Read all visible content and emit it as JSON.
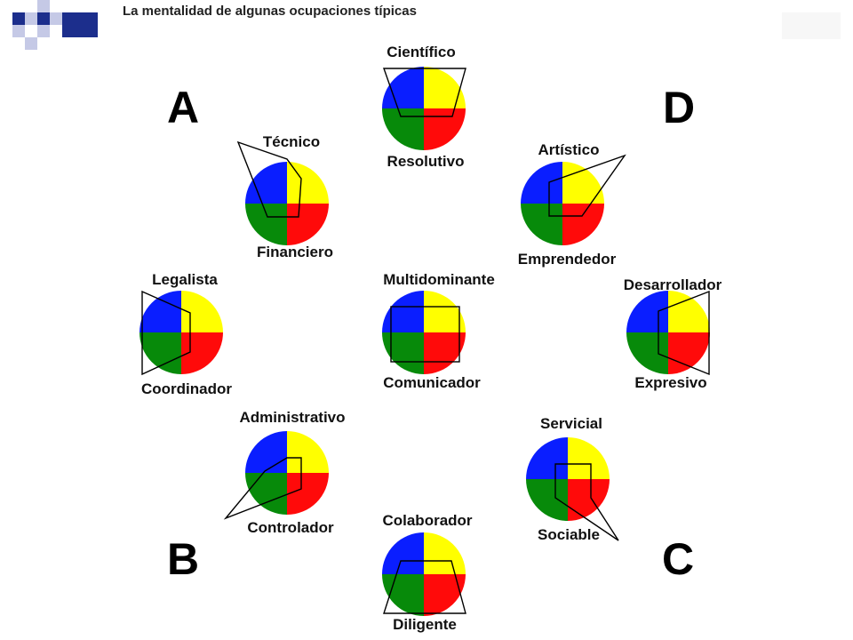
{
  "title": "La mentalidad de algunas ocupaciones típicas",
  "corners": {
    "a": "A",
    "b": "B",
    "c": "C",
    "d": "D"
  },
  "colors": {
    "blue": "#0a1eff",
    "yellow": "#ffff00",
    "green": "#078a0a",
    "red": "#ff0a0a",
    "logo_blue": "#1c2e8c",
    "logo_light": "#c5c9e6"
  },
  "profiles": {
    "cientifico": {
      "top": "Científico",
      "bottom": "Resolutivo"
    },
    "tecnico": {
      "top": "Técnico",
      "bottom": "Financiero"
    },
    "artistico": {
      "top": "Artístico",
      "bottom": "Emprendedor"
    },
    "legalista": {
      "top": "Legalista",
      "bottom": "Coordinador"
    },
    "multidominante": {
      "top": "Multidominante",
      "bottom": "Comunicador"
    },
    "desarrollador": {
      "top": "Desarrollador",
      "bottom": "Expresivo"
    },
    "administrativo": {
      "top": "Administrativo",
      "bottom": "Controlador"
    },
    "servicial": {
      "top": "Servicial",
      "bottom": "Sociable"
    },
    "colaborador": {
      "top": "Colaborador",
      "bottom": "Diligente"
    }
  }
}
